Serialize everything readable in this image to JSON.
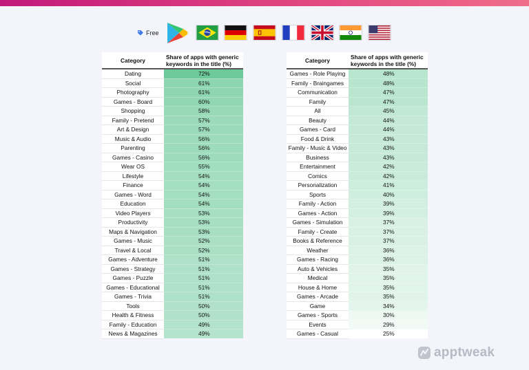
{
  "header": {
    "pricing_label": "Free",
    "store_icon": "google-play-icon",
    "flags": [
      "brazil-flag-icon",
      "germany-flag-icon",
      "spain-flag-icon",
      "france-flag-icon",
      "uk-flag-icon",
      "india-flag-icon",
      "usa-flag-icon"
    ]
  },
  "brand": {
    "name": "apptweak",
    "icon": "apptweak-logo-icon"
  },
  "colors": {
    "scale_high": "#6cc99a",
    "scale_low": "#ffffff",
    "accent_bar": "#d81b77"
  },
  "chart_data": [
    {
      "type": "table",
      "columns": [
        "Category",
        "Share of apps with generic keywords in the title (%)"
      ],
      "categories": [
        "Dating",
        "Social",
        "Photography",
        "Games - Board",
        "Shopping",
        "Family - Pretend",
        "Art & Design",
        "Music & Audio",
        "Parenting",
        "Games - Casino",
        "Wear OS",
        "Lifestyle",
        "Finance",
        "Games - Word",
        "Education",
        "Video Players",
        "Productivity",
        "Maps & Navigation",
        "Games - Music",
        "Travel & Local",
        "Games - Adventure",
        "Games - Strategy",
        "Games - Puzzle",
        "Games - Educational",
        "Games - Trivia",
        "Tools",
        "Health & Fitness",
        "Family - Education",
        "News & Magazines"
      ],
      "values": [
        72,
        61,
        61,
        60,
        58,
        57,
        57,
        56,
        56,
        56,
        55,
        54,
        54,
        54,
        54,
        53,
        53,
        53,
        52,
        52,
        51,
        51,
        51,
        51,
        51,
        50,
        50,
        49,
        49
      ],
      "unit": "%"
    },
    {
      "type": "table",
      "columns": [
        "Category",
        "Share of apps with generic keywords in the title (%)"
      ],
      "categories": [
        "Games - Role Playing",
        "Family - Braingames",
        "Communication",
        "Family",
        "All",
        "Beauty",
        "Games - Card",
        "Food & Drink",
        "Family - Music & Video",
        "Business",
        "Entertainment",
        "Comics",
        "Personalization",
        "Sports",
        "Family - Action",
        "Games - Action",
        "Games - Simulation",
        "Family - Create",
        "Books & Reference",
        "Weather",
        "Games - Racing",
        "Auto & Vehicles",
        "Medical",
        "House & Home",
        "Games - Arcade",
        "Game",
        "Games - Sports",
        "Events",
        "Games - Casual"
      ],
      "values": [
        48,
        48,
        47,
        47,
        45,
        44,
        44,
        43,
        43,
        43,
        42,
        42,
        41,
        40,
        39,
        39,
        37,
        37,
        37,
        36,
        36,
        35,
        35,
        35,
        35,
        34,
        30,
        29,
        25
      ],
      "unit": "%"
    }
  ]
}
